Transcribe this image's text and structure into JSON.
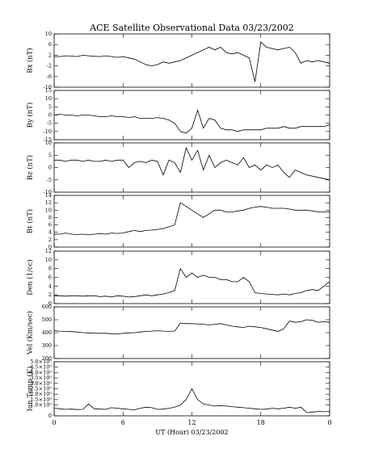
{
  "chart_data": [
    {
      "type": "line",
      "title": "ACE Satellite Observational Data   03/23/2002",
      "ylabel": "Bx (nT)",
      "color": "#000000",
      "x": [
        0,
        0.5,
        1,
        1.5,
        2,
        2.5,
        3,
        3.5,
        4,
        4.5,
        5,
        5.5,
        6,
        6.5,
        7,
        7.5,
        8,
        8.5,
        9,
        9.5,
        10,
        10.5,
        11,
        11.5,
        12,
        12.5,
        13,
        13.5,
        14,
        14.5,
        15,
        15.5,
        16,
        16.5,
        17,
        17.5,
        18,
        18.5,
        19,
        19.5,
        20,
        20.5,
        21,
        21.5,
        22,
        22.5,
        23,
        23.5,
        24
      ],
      "values": [
        1.5,
        1.5,
        1.8,
        1.7,
        1.5,
        2,
        1.8,
        1.6,
        1.5,
        1.8,
        1.5,
        1.2,
        1.5,
        1,
        0.5,
        -0.5,
        -1.5,
        -2,
        -1.5,
        -0.5,
        -1,
        -0.5,
        0,
        1,
        2,
        3,
        4,
        5,
        4,
        5,
        3,
        2.5,
        3,
        2,
        1,
        -8,
        7,
        5,
        4.5,
        4,
        4.5,
        5,
        3,
        -1,
        0,
        -0.5,
        0,
        -0.5,
        -1
      ],
      "ylim": [
        -10,
        10
      ],
      "yticks": [
        -10,
        -6,
        -2,
        2,
        6,
        10
      ]
    },
    {
      "type": "line",
      "ylabel": "By (nT)",
      "color": "#000000",
      "x": [
        0,
        0.5,
        1,
        1.5,
        2,
        2.5,
        3,
        3.5,
        4,
        4.5,
        5,
        5.5,
        6,
        6.5,
        7,
        7.5,
        8,
        8.5,
        9,
        9.5,
        10,
        10.5,
        11,
        11.5,
        12,
        12.5,
        13,
        13.5,
        14,
        14.5,
        15,
        15.5,
        16,
        16.5,
        17,
        17.5,
        18,
        18.5,
        19,
        19.5,
        20,
        20.5,
        21,
        21.5,
        22,
        22.5,
        23,
        23.5,
        24
      ],
      "values": [
        0,
        0.5,
        0,
        0,
        -0.5,
        0,
        0,
        -0.5,
        -1,
        -1,
        -0.5,
        -1,
        -1,
        -1.5,
        -1,
        -2,
        -2,
        -2,
        -1.5,
        -2,
        -3,
        -5,
        -10,
        -11,
        -8,
        3,
        -8,
        -2,
        -3,
        -8,
        -9,
        -9,
        -10,
        -9,
        -9,
        -9,
        -9,
        -8,
        -8,
        -8,
        -7,
        -8,
        -8,
        -7,
        -7,
        -7,
        -7,
        -7,
        -6
      ],
      "ylim": [
        -15,
        15
      ],
      "yticks": [
        -15,
        -10,
        -5,
        0,
        5,
        10,
        15
      ]
    },
    {
      "type": "line",
      "ylabel": "Bz (nT)",
      "color": "#000000",
      "x": [
        0,
        0.5,
        1,
        1.5,
        2,
        2.5,
        3,
        3.5,
        4,
        4.5,
        5,
        5.5,
        6,
        6.5,
        7,
        7.5,
        8,
        8.5,
        9,
        9.5,
        10,
        10.5,
        11,
        11.5,
        12,
        12.5,
        13,
        13.5,
        14,
        14.5,
        15,
        15.5,
        16,
        16.5,
        17,
        17.5,
        18,
        18.5,
        19,
        19.5,
        20,
        20.5,
        21,
        21.5,
        22,
        22.5,
        23,
        23.5,
        24
      ],
      "values": [
        3,
        3,
        2.5,
        3,
        3,
        2.5,
        3,
        2.5,
        2.5,
        3,
        2.5,
        3,
        3,
        0,
        2,
        2.5,
        2,
        3,
        2.5,
        -3,
        3,
        2,
        -2,
        8,
        3,
        7,
        -1,
        5,
        0,
        2,
        3,
        2,
        1,
        4,
        0,
        1,
        -1,
        1,
        0,
        1,
        -2,
        -4,
        -1,
        -2,
        -3,
        -3.5,
        -4,
        -4.5,
        -5
      ],
      "ylim": [
        -10,
        10
      ],
      "yticks": [
        -10,
        -5,
        0,
        5,
        10
      ]
    },
    {
      "type": "line",
      "ylabel": "Bt (nT)",
      "color": "#000000",
      "x": [
        0,
        0.5,
        1,
        1.5,
        2,
        2.5,
        3,
        3.5,
        4,
        4.5,
        5,
        5.5,
        6,
        6.5,
        7,
        7.5,
        8,
        8.5,
        9,
        9.5,
        10,
        10.5,
        11,
        11.5,
        12,
        12.5,
        13,
        13.5,
        14,
        14.5,
        15,
        15.5,
        16,
        16.5,
        17,
        17.5,
        18,
        18.5,
        19,
        19.5,
        20,
        20.5,
        21,
        21.5,
        22,
        22.5,
        23,
        23.5,
        24
      ],
      "values": [
        3.5,
        3.5,
        3.8,
        3.5,
        3.4,
        3.5,
        3.3,
        3.5,
        3.6,
        3.5,
        3.8,
        3.7,
        3.8,
        4.2,
        4.5,
        4.2,
        4.5,
        4.6,
        4.8,
        5,
        5.5,
        6,
        12,
        11,
        10,
        9,
        8,
        9,
        10,
        10,
        9.5,
        9.5,
        9.8,
        10,
        10.5,
        10.8,
        11,
        10.8,
        10.5,
        10.5,
        10.5,
        10.3,
        10,
        10,
        10,
        9.8,
        9.5,
        9.5,
        9.5
      ],
      "ylim": [
        0,
        14
      ],
      "yticks": [
        0,
        2,
        4,
        6,
        8,
        10,
        12,
        14
      ]
    },
    {
      "type": "line",
      "ylabel": "Den (1/cc)",
      "color": "#000000",
      "x": [
        0,
        0.5,
        1,
        1.5,
        2,
        2.5,
        3,
        3.5,
        4,
        4.5,
        5,
        5.5,
        6,
        6.5,
        7,
        7.5,
        8,
        8.5,
        9,
        9.5,
        10,
        10.5,
        11,
        11.5,
        12,
        12.5,
        13,
        13.5,
        14,
        14.5,
        15,
        15.5,
        16,
        16.5,
        17,
        17.5,
        18,
        18.5,
        19,
        19.5,
        20,
        20.5,
        21,
        21.5,
        22,
        22.5,
        23,
        23.5,
        24
      ],
      "values": [
        1.8,
        1.8,
        1.7,
        1.8,
        1.8,
        1.7,
        1.8,
        1.8,
        1.6,
        1.7,
        1.5,
        1.8,
        1.7,
        1.5,
        1.6,
        1.8,
        2,
        1.8,
        2,
        2.2,
        2.5,
        3,
        8,
        6,
        7,
        6,
        6.5,
        6,
        6,
        5.5,
        5.5,
        5,
        5,
        6,
        5,
        2.5,
        2.3,
        2.2,
        2.1,
        2,
        2.2,
        2,
        2.3,
        2.5,
        3,
        3.2,
        3,
        4,
        5
      ],
      "ylim": [
        0,
        12
      ],
      "yticks": [
        0,
        2,
        4,
        6,
        8,
        10,
        12
      ]
    },
    {
      "type": "line",
      "ylabel": "Vel (Km/sec)",
      "color": "#000000",
      "x": [
        0,
        0.5,
        1,
        1.5,
        2,
        2.5,
        3,
        3.5,
        4,
        4.5,
        5,
        5.5,
        6,
        6.5,
        7,
        7.5,
        8,
        8.5,
        9,
        9.5,
        10,
        10.5,
        11,
        11.5,
        12,
        12.5,
        13,
        13.5,
        14,
        14.5,
        15,
        15.5,
        16,
        16.5,
        17,
        17.5,
        18,
        18.5,
        19,
        19.5,
        20,
        20.5,
        21,
        21.5,
        22,
        22.5,
        23,
        23.5,
        24
      ],
      "values": [
        415,
        412,
        410,
        408,
        405,
        400,
        398,
        396,
        395,
        395,
        392,
        390,
        395,
        398,
        400,
        405,
        410,
        412,
        415,
        412,
        410,
        412,
        475,
        470,
        470,
        468,
        465,
        460,
        465,
        470,
        460,
        450,
        445,
        440,
        450,
        445,
        440,
        430,
        420,
        410,
        430,
        490,
        480,
        485,
        500,
        495,
        480,
        485,
        480
      ],
      "ylim": [
        200,
        600
      ],
      "yticks": [
        200,
        300,
        400,
        500,
        600
      ]
    },
    {
      "type": "line",
      "ylabel": "Ion Temp (K)",
      "xlabel": "UT (Hour)  03/23/2002",
      "color": "#000000",
      "x": [
        0,
        0.5,
        1,
        1.5,
        2,
        2.5,
        3,
        3.5,
        4,
        4.5,
        5,
        5.5,
        6,
        6.5,
        7,
        7.5,
        8,
        8.5,
        9,
        9.5,
        10,
        10.5,
        11,
        11.5,
        12,
        12.5,
        13,
        13.5,
        14,
        14.5,
        15,
        15.5,
        16,
        16.5,
        17,
        17.5,
        18,
        18.5,
        19,
        19.5,
        20,
        20.5,
        21,
        21.5,
        22,
        22.5,
        23,
        23.5,
        24
      ],
      "values": [
        70000,
        65000,
        60000,
        62000,
        58000,
        60000,
        110000,
        65000,
        62000,
        60000,
        75000,
        70000,
        65000,
        60000,
        55000,
        70000,
        80000,
        75000,
        60000,
        62000,
        70000,
        80000,
        100000,
        150000,
        250000,
        150000,
        110000,
        100000,
        90000,
        95000,
        90000,
        85000,
        80000,
        75000,
        70000,
        65000,
        60000,
        62000,
        70000,
        65000,
        70000,
        80000,
        70000,
        80000,
        30000,
        35000,
        40000,
        38000,
        40000
      ],
      "ylim": [
        0,
        500000
      ],
      "yticks": [
        0,
        {
          "value": 100000,
          "label": "1.0×10⁵"
        },
        {
          "value": 150000,
          "label": "1.5×10⁵"
        },
        {
          "value": 200000,
          "label": "2.0×10⁵"
        },
        {
          "value": 250000,
          "label": "2.5×10⁵"
        },
        {
          "value": 300000,
          "label": "3.0×10⁵"
        },
        {
          "value": 350000,
          "label": "3.5×10⁵"
        },
        {
          "value": 400000,
          "label": "4.0×10⁵"
        },
        {
          "value": 450000,
          "label": "4.5×10⁵"
        },
        {
          "value": 500000,
          "label": "5.0×10⁵"
        }
      ],
      "xlim": [
        0,
        24
      ],
      "xticks": [
        0,
        6,
        12,
        18,
        {
          "value": 24,
          "label": "0"
        }
      ]
    }
  ]
}
